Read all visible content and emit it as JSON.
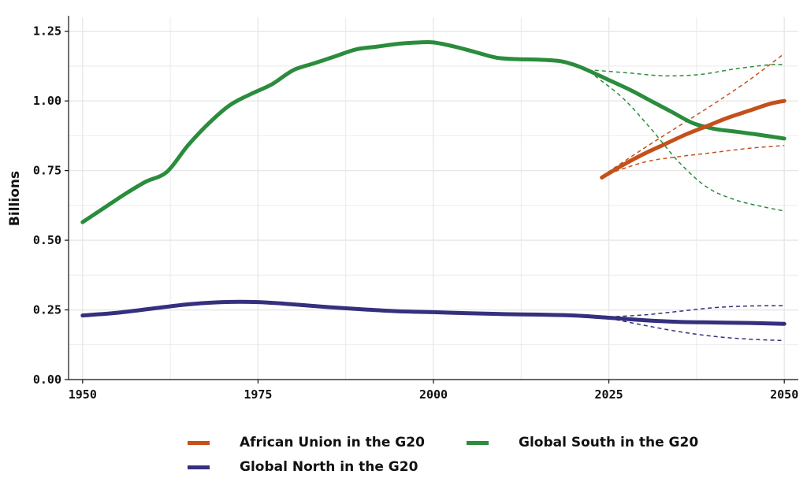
{
  "chart_data": {
    "type": "line",
    "title": "",
    "xlabel": "",
    "ylabel": "Billions",
    "xlim": [
      1948,
      2052
    ],
    "ylim": [
      0,
      1.3
    ],
    "x_ticks": [
      1950,
      1975,
      2000,
      2025,
      2050
    ],
    "x_tick_labels": [
      "1950",
      "1975",
      "2000",
      "2025",
      "2050"
    ],
    "y_ticks": [
      0,
      0.25,
      0.5,
      0.75,
      1.0,
      1.25
    ],
    "y_tick_labels": [
      "0.00",
      "0.25",
      "0.50",
      "0.75",
      "1.00",
      "1.25"
    ],
    "grid": true,
    "legend_position": "bottom",
    "colors": {
      "african_union": "#c4501b",
      "global_south": "#2a8c3c",
      "global_north": "#35307e",
      "grid": "#e6e6e6",
      "axis": "#111111"
    },
    "series": [
      {
        "name": "Global South in the G20",
        "color": "#2a8c3c",
        "x": [
          1950,
          1953,
          1956,
          1959,
          1962,
          1965,
          1968,
          1971,
          1974,
          1977,
          1980,
          1983,
          1986,
          1989,
          1992,
          1995,
          1998,
          2000,
          2003,
          2006,
          2009,
          2012,
          2015,
          2018,
          2020,
          2022,
          2025,
          2028,
          2031,
          2034,
          2037,
          2040,
          2043,
          2046,
          2050
        ],
        "values": [
          0.565,
          0.615,
          0.665,
          0.71,
          0.745,
          0.84,
          0.92,
          0.985,
          1.025,
          1.06,
          1.11,
          1.135,
          1.16,
          1.185,
          1.195,
          1.205,
          1.21,
          1.21,
          1.195,
          1.175,
          1.155,
          1.15,
          1.148,
          1.143,
          1.13,
          1.11,
          1.075,
          1.04,
          1.0,
          0.96,
          0.92,
          0.9,
          0.89,
          0.88,
          0.865
        ]
      },
      {
        "name": "Global South projection high",
        "color": "#2a8c3c",
        "dashed": true,
        "x": [
          2023,
          2028,
          2033,
          2038,
          2043,
          2048,
          2050
        ],
        "values": [
          1.11,
          1.1,
          1.09,
          1.095,
          1.115,
          1.13,
          1.13
        ]
      },
      {
        "name": "Global South projection low",
        "color": "#2a8c3c",
        "dashed": true,
        "x": [
          2023,
          2027,
          2031,
          2035,
          2039,
          2043,
          2047,
          2050
        ],
        "values": [
          1.09,
          1.01,
          0.9,
          0.78,
          0.69,
          0.645,
          0.62,
          0.605
        ]
      },
      {
        "name": "African Union in the G20",
        "color": "#c4501b",
        "x": [
          2024,
          2027,
          2030,
          2033,
          2036,
          2039,
          2042,
          2045,
          2048,
          2050
        ],
        "values": [
          0.725,
          0.77,
          0.81,
          0.845,
          0.88,
          0.91,
          0.94,
          0.965,
          0.99,
          1.0
        ]
      },
      {
        "name": "African Union projection high",
        "color": "#c4501b",
        "dashed": true,
        "x": [
          2024,
          2030,
          2035,
          2040,
          2045,
          2050
        ],
        "values": [
          0.73,
          0.83,
          0.91,
          0.99,
          1.075,
          1.17
        ]
      },
      {
        "name": "African Union projection low",
        "color": "#c4501b",
        "dashed": true,
        "x": [
          2024,
          2030,
          2035,
          2040,
          2045,
          2050
        ],
        "values": [
          0.73,
          0.78,
          0.8,
          0.815,
          0.83,
          0.84
        ]
      },
      {
        "name": "Global North in the G20",
        "color": "#35307e",
        "x": [
          1950,
          1955,
          1960,
          1965,
          1970,
          1975,
          1980,
          1985,
          1990,
          1995,
          2000,
          2005,
          2010,
          2015,
          2020,
          2025,
          2030,
          2035,
          2040,
          2045,
          2050
        ],
        "values": [
          0.23,
          0.24,
          0.255,
          0.27,
          0.278,
          0.278,
          0.27,
          0.26,
          0.252,
          0.245,
          0.242,
          0.238,
          0.235,
          0.233,
          0.23,
          0.222,
          0.213,
          0.207,
          0.205,
          0.203,
          0.2
        ]
      },
      {
        "name": "Global North projection high",
        "color": "#35307e",
        "dashed": true,
        "x": [
          2025,
          2030,
          2035,
          2040,
          2045,
          2050
        ],
        "values": [
          0.225,
          0.232,
          0.245,
          0.258,
          0.264,
          0.265
        ]
      },
      {
        "name": "Global North projection low",
        "color": "#35307e",
        "dashed": true,
        "x": [
          2025,
          2030,
          2035,
          2040,
          2045,
          2050
        ],
        "values": [
          0.22,
          0.195,
          0.172,
          0.155,
          0.145,
          0.14
        ]
      }
    ],
    "legend": [
      {
        "label": "African Union in the G20",
        "color": "#c4501b"
      },
      {
        "label": "Global South in the G20",
        "color": "#2a8c3c"
      },
      {
        "label": "Global North in the G20",
        "color": "#35307e"
      }
    ]
  }
}
